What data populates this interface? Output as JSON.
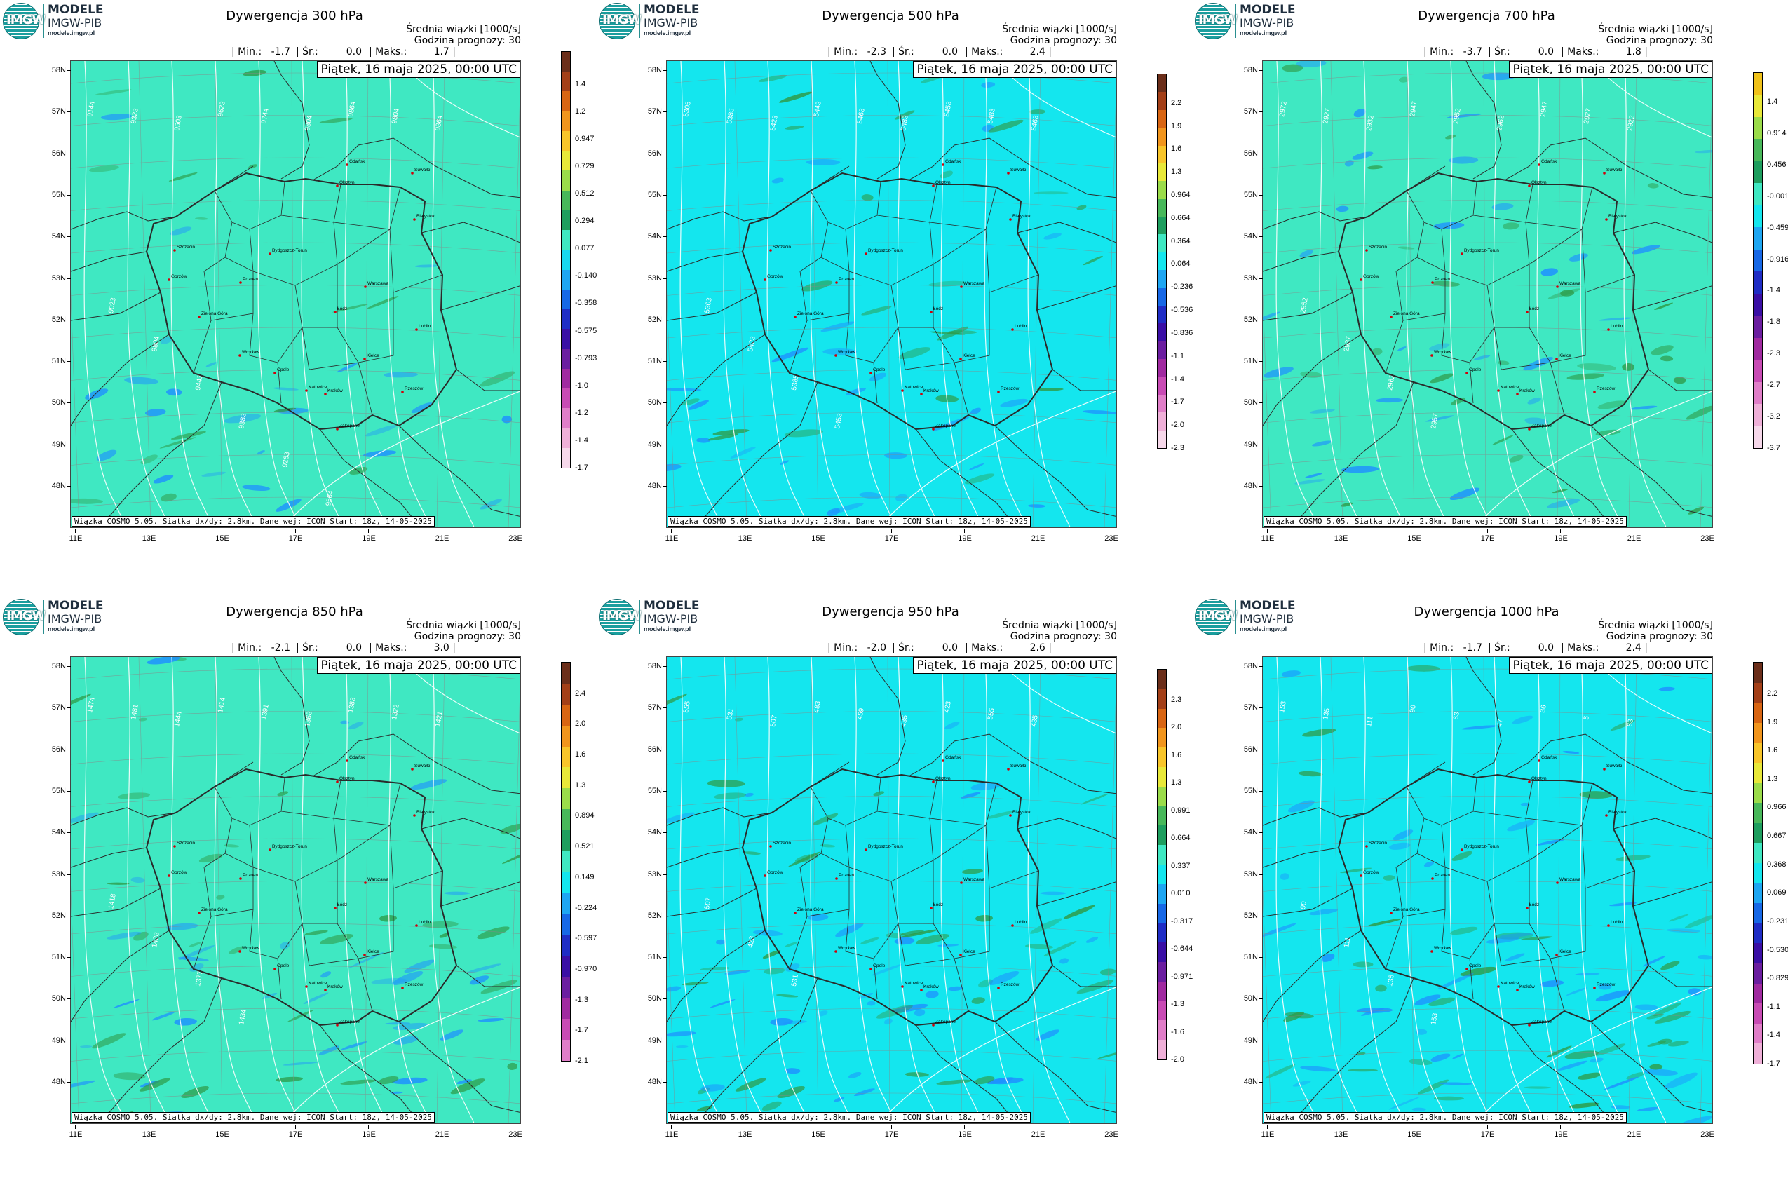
{
  "logo": {
    "line1": "MODELE",
    "line2": "IMGW-PIB",
    "line3": "modele.imgw.pl",
    "disc_text": "IMGW"
  },
  "common": {
    "subtitle": "Średnia wiązki [1000/s]",
    "forecast_hour": "Godzina prognozy: 30",
    "min_label": "| Min.:",
    "mean_label": "| Śr.:",
    "max_label": "| Maks.:",
    "date": "Piątek, 16 maja 2025, 00:00 UTC",
    "footnote": "Wiązka COSMO 5.05. Siatka dx/dy: 2.8km. Dane wej: ICON Start: 18z, 14-05-2025",
    "lat_labels": [
      "58N",
      "57N",
      "56N",
      "55N",
      "54N",
      "53N",
      "52N",
      "51N",
      "50N",
      "49N",
      "48N"
    ],
    "lon_labels": [
      "11E",
      "13E",
      "15E",
      "17E",
      "19E",
      "21E",
      "23E"
    ],
    "cities": [
      "Gdańsk",
      "Olsztyn",
      "Suwałki",
      "Białystok",
      "Szczecin",
      "Bydgoszcz-Toruń",
      "Gorzów",
      "Poznań",
      "Warszawa",
      "Zielona Góra",
      "Łódź",
      "Lublin",
      "Wrocław",
      "Kielce",
      "Opole",
      "Katowice",
      "Kraków",
      "Rzeszów",
      "Zakopane"
    ]
  },
  "colors": {
    "field_base_a": "#3fe8c2",
    "field_base_b": "#14e6ee",
    "convergence": "#1e90ff",
    "divergence": "#2e9b48",
    "contour": "#ffffff",
    "border": "#2a2a2a"
  },
  "panels": [
    {
      "title": "Dywergencja 300 hPa",
      "min": "-1.7",
      "mean": "0.0",
      "max": "1.7 |",
      "cbar_labels": [
        "1.4",
        "1.2",
        "0.947",
        "0.729",
        "0.512",
        "0.294",
        "0.077",
        "-0.140",
        "-0.358",
        "-0.575",
        "-0.793",
        "-1.0",
        "-1.2",
        "-1.4",
        "-1.7"
      ],
      "contour_labels": [
        "9144",
        "9323",
        "9503",
        "9623",
        "9744",
        "9804",
        "9864",
        "9804",
        "9864",
        "9023",
        "9804",
        "9443",
        "9383",
        "9263",
        "9564"
      ]
    },
    {
      "title": "Dywergencja 500 hPa",
      "min": "-2.3",
      "mean": "0.0",
      "max": "2.4 |",
      "cbar_labels": [
        "2.2",
        "1.9",
        "1.6",
        "1.3",
        "0.964",
        "0.664",
        "0.364",
        "0.064",
        "-0.236",
        "-0.536",
        "-0.836",
        "-1.1",
        "-1.4",
        "-1.7",
        "-2.0",
        "-2.3"
      ],
      "contour_labels": [
        "5305",
        "5385",
        "5423",
        "5443",
        "5463",
        "5483",
        "5453",
        "5483",
        "5463",
        "5303",
        "5423",
        "5385",
        "5453"
      ]
    },
    {
      "title": "Dywergencja 700 hPa",
      "min": "-3.7",
      "mean": "0.0",
      "max": "1.8 |",
      "cbar_labels": [
        "1.4",
        "0.914",
        "0.456",
        "-0.001",
        "-0.459",
        "-0.916",
        "-1.4",
        "-1.8",
        "-2.3",
        "-2.7",
        "-3.2",
        "-3.7"
      ],
      "contour_labels": [
        "2972",
        "2927",
        "2932",
        "2947",
        "2952",
        "2962",
        "2947",
        "2927",
        "2922",
        "2952",
        "2937",
        "2962",
        "2957"
      ]
    },
    {
      "title": "Dywergencja 850 hPa",
      "min": "-2.1",
      "mean": "0.0",
      "max": "3.0 |",
      "cbar_labels": [
        "2.4",
        "2.0",
        "1.6",
        "1.3",
        "0.894",
        "0.521",
        "0.149",
        "-0.224",
        "-0.597",
        "-0.970",
        "-1.3",
        "-1.7",
        "-2.1"
      ],
      "contour_labels": [
        "1474",
        "1481",
        "1444",
        "1414",
        "1391",
        "1368",
        "1383",
        "1322",
        "1421",
        "1418",
        "1428",
        "1377",
        "1434"
      ]
    },
    {
      "title": "Dywergencja 950 hPa",
      "min": "-2.0",
      "mean": "0.0",
      "max": "2.6 |",
      "cbar_labels": [
        "2.3",
        "2.0",
        "1.6",
        "1.3",
        "0.991",
        "0.664",
        "0.337",
        "0.010",
        "-0.317",
        "-0.644",
        "-0.971",
        "-1.3",
        "-1.6",
        "-2.0"
      ],
      "contour_labels": [
        "555",
        "531",
        "507",
        "483",
        "459",
        "435",
        "423",
        "555",
        "435",
        "507",
        "423",
        "531"
      ]
    },
    {
      "title": "Dywergencja 1000 hPa",
      "min": "-1.7",
      "mean": "0.0",
      "max": "2.4 |",
      "cbar_labels": [
        "2.2",
        "1.9",
        "1.6",
        "1.3",
        "0.966",
        "0.667",
        "0.368",
        "0.069",
        "-0.231",
        "-0.530",
        "-0.829",
        "-1.1",
        "-1.4",
        "-1.7"
      ],
      "contour_labels": [
        "153",
        "135",
        "111",
        "90",
        "63",
        "47",
        "36",
        "5",
        "63",
        "90",
        "111",
        "135",
        "153"
      ]
    }
  ]
}
